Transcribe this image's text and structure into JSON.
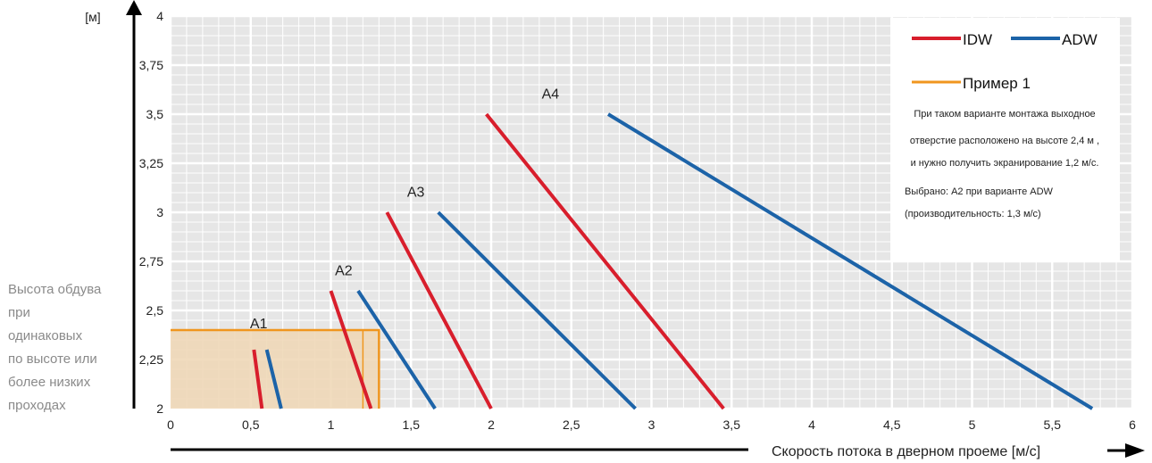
{
  "chart_data": {
    "type": "line",
    "ylabel": "[м]",
    "xlabel": "Скорость потока в дверном проеме [м/с]",
    "xlim": [
      0,
      6
    ],
    "ylim": [
      2,
      4
    ],
    "x_ticks": [
      {
        "value": 0,
        "label": "0"
      },
      {
        "value": 0.5,
        "label": "0,5"
      },
      {
        "value": 1,
        "label": "1"
      },
      {
        "value": 1.5,
        "label": "1,5"
      },
      {
        "value": 2,
        "label": "2"
      },
      {
        "value": 2.5,
        "label": "2,5"
      },
      {
        "value": 3,
        "label": "3"
      },
      {
        "value": 3.5,
        "label": "3,5"
      },
      {
        "value": 4,
        "label": "4"
      },
      {
        "value": 4.5,
        "label": "4,5"
      },
      {
        "value": 5,
        "label": "5"
      },
      {
        "value": 5.5,
        "label": "5,5"
      },
      {
        "value": 6,
        "label": "6"
      }
    ],
    "y_ticks": [
      {
        "value": 2,
        "label": "2"
      },
      {
        "value": 2.25,
        "label": "2,25"
      },
      {
        "value": 2.5,
        "label": "2,5"
      },
      {
        "value": 2.75,
        "label": "2,75"
      },
      {
        "value": 3,
        "label": "3"
      },
      {
        "value": 3.25,
        "label": "3,25"
      },
      {
        "value": 3.5,
        "label": "3,5"
      },
      {
        "value": 3.75,
        "label": "3,75"
      },
      {
        "value": 4,
        "label": "4"
      }
    ],
    "grid": true,
    "side_label_lines": [
      "Высота обдува",
      "при",
      "одинаковых",
      "по высоте или",
      "более низких",
      "проходах"
    ],
    "series": [
      {
        "name": "IDW",
        "group": "A1",
        "x": [
          0.52,
          0.57
        ],
        "y": [
          2.3,
          2.0
        ]
      },
      {
        "name": "ADW",
        "group": "A1",
        "x": [
          0.6,
          0.69
        ],
        "y": [
          2.3,
          2.0
        ]
      },
      {
        "name": "IDW",
        "group": "A2",
        "x": [
          1.0,
          1.25
        ],
        "y": [
          2.6,
          2.0
        ]
      },
      {
        "name": "ADW",
        "group": "A2",
        "x": [
          1.17,
          1.65
        ],
        "y": [
          2.6,
          2.0
        ]
      },
      {
        "name": "IDW",
        "group": "A3",
        "x": [
          1.35,
          2.0
        ],
        "y": [
          3.0,
          2.0
        ]
      },
      {
        "name": "ADW",
        "group": "A3",
        "x": [
          1.67,
          2.9
        ],
        "y": [
          3.0,
          2.0
        ]
      },
      {
        "name": "IDW",
        "group": "A4",
        "x": [
          1.97,
          3.45
        ],
        "y": [
          3.5,
          2.0
        ]
      },
      {
        "name": "ADW",
        "group": "A4",
        "x": [
          2.73,
          5.75
        ],
        "y": [
          3.5,
          2.0
        ]
      }
    ],
    "group_labels": [
      {
        "text": "A1",
        "x": 0.55,
        "y": 2.41
      },
      {
        "text": "A2",
        "x": 1.08,
        "y": 2.68
      },
      {
        "text": "A3",
        "x": 1.53,
        "y": 3.08
      },
      {
        "text": "A4",
        "x": 2.37,
        "y": 3.58
      }
    ],
    "example": {
      "name": "Пример 1",
      "height": 2.4,
      "x_target": 1.2,
      "x_selected": 1.3
    },
    "legend": {
      "position": "top-right",
      "items": [
        {
          "label": "IDW",
          "color": "#d81e2c"
        },
        {
          "label": "ADW",
          "color": "#1c63a8"
        },
        {
          "label": "Пример 1",
          "color": "#f0961e"
        }
      ],
      "note_lines": [
        "При таком варианте монтажа выходное",
        "отверстие расположено на высоте 2,4 м ,",
        "и нужно получить экранирование 1,2 м/с.",
        "Выбрано: А2 при варианте ADW",
        "(производительность: 1,3 м/с)"
      ]
    },
    "colors": {
      "IDW": "#d81e2c",
      "ADW": "#1c63a8",
      "example": "#f0961e",
      "example_fill": "#efd6b4",
      "grid_bg": "#e6e6e6"
    }
  }
}
